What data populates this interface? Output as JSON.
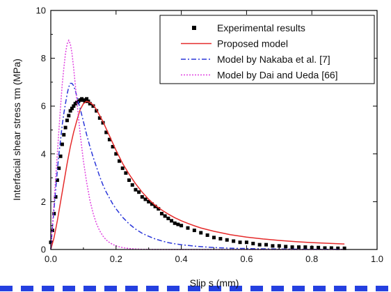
{
  "chart_data": {
    "type": "line",
    "title": "",
    "xlabel": "Slip s (mm)",
    "ylabel": "Interfacial shear stress τm (MPa)",
    "xlim": [
      0,
      1.0
    ],
    "ylim": [
      0,
      10
    ],
    "x_ticks": [
      "0.0",
      "0.2",
      "0.4",
      "0.6",
      "0.8",
      "1.0"
    ],
    "y_ticks": [
      "0",
      "2",
      "4",
      "6",
      "8",
      "10"
    ],
    "grid": false,
    "legend_position": "top-right",
    "legend_box": true,
    "series": [
      {
        "name": "Experimental results",
        "style": "square-markers",
        "color": "#000000",
        "x": [
          0.0,
          0.005,
          0.01,
          0.015,
          0.02,
          0.025,
          0.03,
          0.035,
          0.04,
          0.045,
          0.05,
          0.055,
          0.06,
          0.065,
          0.07,
          0.075,
          0.08,
          0.085,
          0.09,
          0.095,
          0.1,
          0.105,
          0.11,
          0.115,
          0.12,
          0.13,
          0.14,
          0.15,
          0.16,
          0.17,
          0.18,
          0.19,
          0.2,
          0.21,
          0.22,
          0.23,
          0.24,
          0.25,
          0.26,
          0.27,
          0.28,
          0.29,
          0.3,
          0.31,
          0.32,
          0.33,
          0.34,
          0.35,
          0.36,
          0.37,
          0.38,
          0.39,
          0.4,
          0.42,
          0.44,
          0.46,
          0.48,
          0.5,
          0.52,
          0.54,
          0.56,
          0.58,
          0.6,
          0.62,
          0.64,
          0.66,
          0.68,
          0.7,
          0.72,
          0.74,
          0.76,
          0.78,
          0.8,
          0.82,
          0.84,
          0.86,
          0.88,
          0.9
        ],
        "y": [
          0.3,
          0.8,
          1.5,
          2.2,
          2.9,
          3.4,
          3.9,
          4.4,
          4.8,
          5.1,
          5.4,
          5.6,
          5.8,
          5.9,
          6.0,
          6.1,
          6.15,
          6.2,
          6.25,
          6.3,
          6.25,
          6.2,
          6.3,
          6.2,
          6.1,
          6.0,
          5.8,
          5.5,
          5.3,
          4.9,
          4.6,
          4.3,
          4.0,
          3.7,
          3.4,
          3.2,
          2.9,
          2.7,
          2.5,
          2.4,
          2.2,
          2.1,
          2.0,
          1.9,
          1.8,
          1.7,
          1.5,
          1.4,
          1.3,
          1.2,
          1.1,
          1.05,
          1.0,
          0.9,
          0.8,
          0.7,
          0.6,
          0.5,
          0.45,
          0.4,
          0.35,
          0.3,
          0.3,
          0.25,
          0.2,
          0.2,
          0.15,
          0.15,
          0.12,
          0.1,
          0.1,
          0.1,
          0.08,
          0.08,
          0.06,
          0.06,
          0.05,
          0.05
        ]
      },
      {
        "name": "Proposed model",
        "style": "solid",
        "color": "#e52a2a",
        "x": [
          0.0,
          0.01,
          0.02,
          0.03,
          0.04,
          0.05,
          0.06,
          0.07,
          0.08,
          0.09,
          0.1,
          0.11,
          0.12,
          0.13,
          0.14,
          0.15,
          0.16,
          0.17,
          0.18,
          0.19,
          0.2,
          0.22,
          0.24,
          0.26,
          0.28,
          0.3,
          0.32,
          0.34,
          0.36,
          0.38,
          0.4,
          0.42,
          0.44,
          0.46,
          0.48,
          0.5,
          0.55,
          0.6,
          0.65,
          0.7,
          0.75,
          0.8,
          0.85,
          0.9
        ],
        "y": [
          0.0,
          0.5,
          1.2,
          2.0,
          2.8,
          3.6,
          4.3,
          4.9,
          5.4,
          5.85,
          6.1,
          6.2,
          6.15,
          6.05,
          5.85,
          5.6,
          5.35,
          5.05,
          4.75,
          4.45,
          4.15,
          3.6,
          3.15,
          2.75,
          2.4,
          2.1,
          1.85,
          1.65,
          1.48,
          1.33,
          1.2,
          1.09,
          0.99,
          0.9,
          0.83,
          0.76,
          0.62,
          0.52,
          0.44,
          0.38,
          0.33,
          0.29,
          0.26,
          0.23
        ]
      },
      {
        "name": "Model by Nakaba et al. [7]",
        "style": "dash-dot",
        "color": "#2a36d9",
        "x": [
          0.0,
          0.005,
          0.01,
          0.015,
          0.02,
          0.025,
          0.03,
          0.035,
          0.04,
          0.045,
          0.05,
          0.055,
          0.06,
          0.065,
          0.07,
          0.075,
          0.08,
          0.09,
          0.1,
          0.11,
          0.12,
          0.13,
          0.14,
          0.15,
          0.16,
          0.17,
          0.18,
          0.19,
          0.2,
          0.22,
          0.24,
          0.26,
          0.28,
          0.3,
          0.32,
          0.34,
          0.36,
          0.38,
          0.4,
          0.44,
          0.48,
          0.52,
          0.56,
          0.6,
          0.65,
          0.7,
          0.75,
          0.8,
          0.85,
          0.9
        ],
        "y": [
          0.0,
          0.9,
          1.7,
          2.5,
          3.3,
          4.0,
          4.6,
          5.2,
          5.7,
          6.1,
          6.5,
          6.8,
          6.95,
          6.95,
          6.85,
          6.65,
          6.4,
          5.9,
          5.35,
          4.8,
          4.3,
          3.85,
          3.45,
          3.05,
          2.7,
          2.4,
          2.15,
          1.9,
          1.7,
          1.35,
          1.07,
          0.85,
          0.68,
          0.55,
          0.44,
          0.36,
          0.29,
          0.24,
          0.2,
          0.14,
          0.1,
          0.07,
          0.05,
          0.04,
          0.03,
          0.02,
          0.015,
          0.01,
          0.008,
          0.005
        ]
      },
      {
        "name": "Model by Dai and Ueda [66]",
        "style": "dotted",
        "color": "#e040e0",
        "x": [
          0.0,
          0.005,
          0.01,
          0.015,
          0.02,
          0.025,
          0.03,
          0.035,
          0.04,
          0.045,
          0.05,
          0.055,
          0.06,
          0.065,
          0.07,
          0.075,
          0.08,
          0.085,
          0.09,
          0.095,
          0.1,
          0.11,
          0.12,
          0.13,
          0.14,
          0.15,
          0.16,
          0.17,
          0.18,
          0.19,
          0.2,
          0.22,
          0.24,
          0.26,
          0.28,
          0.3,
          0.35,
          0.4,
          0.5,
          0.6,
          0.7,
          0.8,
          0.9
        ],
        "y": [
          0.0,
          1.0,
          2.0,
          3.0,
          4.0,
          5.0,
          6.0,
          6.9,
          7.6,
          8.2,
          8.6,
          8.75,
          8.6,
          8.2,
          7.6,
          6.9,
          6.2,
          5.5,
          4.85,
          4.25,
          3.7,
          2.8,
          2.05,
          1.5,
          1.08,
          0.78,
          0.56,
          0.4,
          0.29,
          0.21,
          0.15,
          0.08,
          0.04,
          0.02,
          0.01,
          0.005,
          0.0,
          0.0,
          0.0,
          0.0,
          0.0,
          0.0,
          0.0
        ]
      }
    ]
  },
  "decor": {
    "bottom_band_color": "#2440e0"
  }
}
